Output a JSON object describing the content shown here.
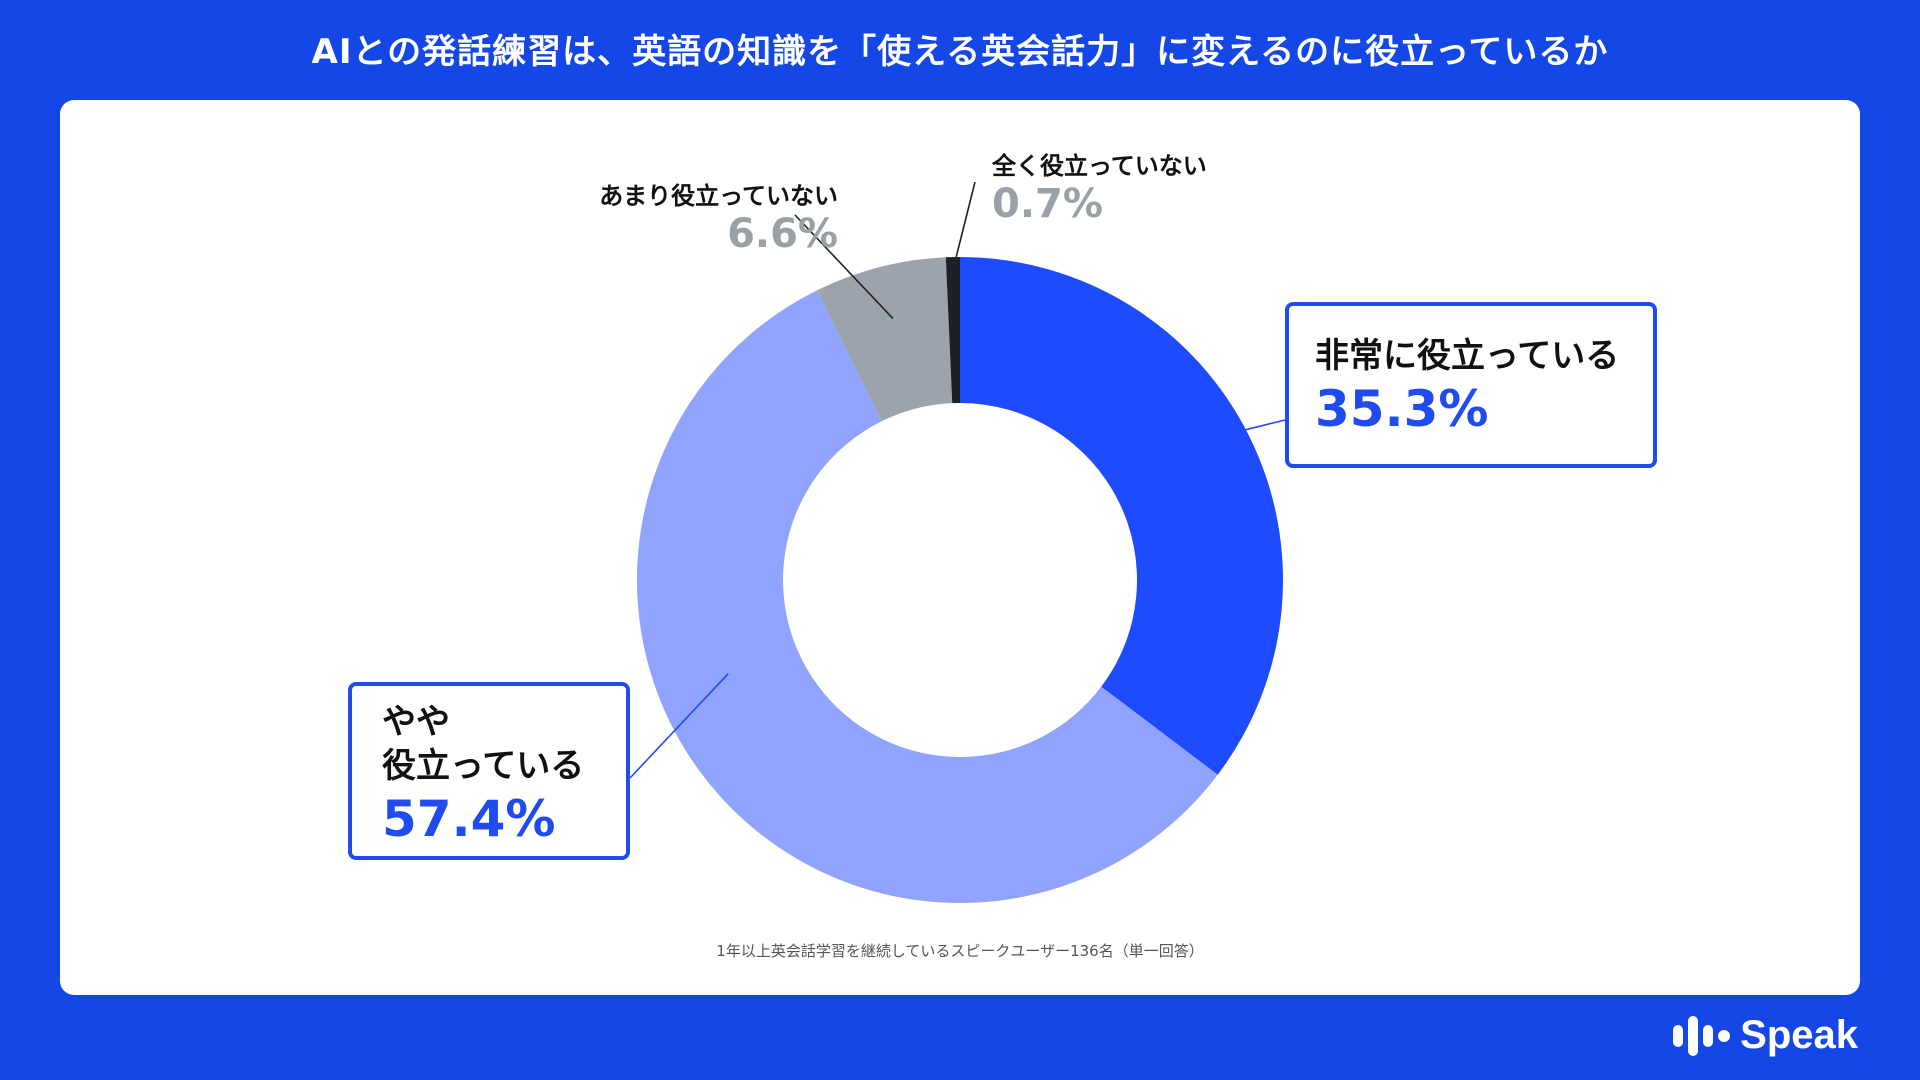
{
  "title": "AIとの発話練習は、英語の知識を「使える英会話力」に変えるのに役立っているか",
  "footnote": "1年以上英会話学習を継続しているスピークユーザー136名（単一回答）",
  "logo": {
    "text": "Speak",
    "icon": "speak-logo-icon"
  },
  "colors": {
    "background": "#1447e6",
    "very_helpful": "#1f4bff",
    "somewhat_helpful": "#90a4ff",
    "not_very_helpful": "#9ca3ad",
    "not_at_all": "#1c2128",
    "label_accent": "#1f4bf0",
    "label_gray": "#9aa0a8"
  },
  "labels": {
    "very_helpful": {
      "name": "非常に役立っている",
      "value": "35.3%"
    },
    "somewhat_helpful": {
      "name_line1": "やや",
      "name_line2": "役立っている",
      "value": "57.4%"
    },
    "not_very_helpful": {
      "name": "あまり役立っていない",
      "value": "6.6%"
    },
    "not_at_all": {
      "name": "全く役立っていない",
      "value": "0.7%"
    }
  },
  "chart_data": {
    "type": "pie",
    "subtype": "donut",
    "title": "AIとの発話練習は、英語の知識を「使える英会話力」に変えるのに役立っているか",
    "categories": [
      "非常に役立っている",
      "やや役立っている",
      "あまり役立っていない",
      "全く役立っていない"
    ],
    "values": [
      35.3,
      57.4,
      6.6,
      0.7
    ],
    "unit": "%",
    "colors": [
      "#1f4bff",
      "#90a4ff",
      "#9ca3ad",
      "#1c2128"
    ],
    "start": "12 o'clock, clockwise"
  }
}
